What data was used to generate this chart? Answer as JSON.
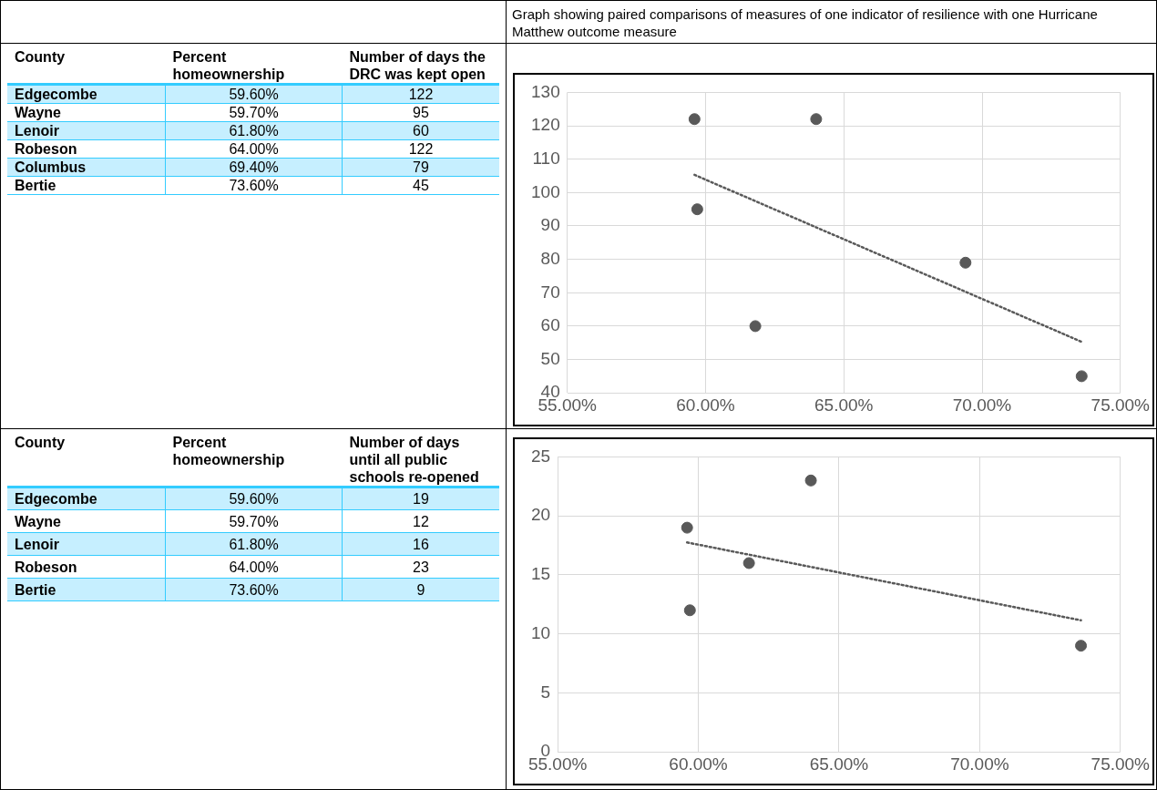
{
  "chart_data": [
    {
      "type": "other",
      "annotations": [
        "County",
        "Percent homeownership",
        "Number of days the DRC was kept open",
        "Edgecombe",
        "59.60%",
        "122",
        "Wayne",
        "59.70%",
        "95",
        "Lenoir",
        "61.80%",
        "60",
        "Robeson",
        "64.00%",
        "122",
        "Columbus",
        "69.40%",
        "79",
        "Bertie",
        "73.60%",
        "45"
      ]
    },
    {
      "type": "scatter",
      "title": "Graph showing paired comparisons of measures of one indicator of resilience with one Hurricane Matthew outcome measure",
      "series": [
        {
          "color": "#595959",
          "marker": "circle",
          "x": [
            59.6,
            59.7,
            61.8,
            64,
            69.4,
            73.6
          ],
          "values": [
            122,
            95,
            60,
            122,
            79,
            45
          ]
        },
        {
          "type": "line",
          "color": "#595959",
          "marker": "none",
          "x": [
            59.6,
            73.6
          ],
          "values": [
            105.3,
            55.3
          ],
          "line_style": "dotted"
        }
      ],
      "xlim": [
        55,
        75
      ],
      "xticks": [
        {
          "value": 55,
          "label": "55.00%"
        },
        {
          "value": 60,
          "label": "60.00%"
        },
        {
          "value": 65,
          "label": "65.00%"
        },
        {
          "value": 70,
          "label": "70.00%"
        },
        {
          "value": 75,
          "label": "75.00%"
        }
      ],
      "ylim": [
        40,
        130
      ],
      "yticks": [
        40,
        50,
        60,
        70,
        80,
        90,
        100,
        110,
        120,
        130
      ],
      "grid": true
    },
    {
      "type": "other",
      "annotations": [
        "County",
        "Percent homeownership",
        "Number of days until all public schools re-opened",
        "Edgecombe",
        "59.60%",
        "19",
        "Wayne",
        "59.70%",
        "12",
        "Lenoir",
        "61.80%",
        "16",
        "Robeson",
        "64.00%",
        "23",
        "Bertie",
        "73.60%",
        "9"
      ]
    },
    {
      "type": "scatter",
      "series": [
        {
          "color": "#595959",
          "marker": "circle",
          "x": [
            59.6,
            59.7,
            61.8,
            64,
            73.6
          ],
          "values": [
            19,
            12,
            16,
            23,
            9
          ]
        },
        {
          "type": "line",
          "color": "#595959",
          "marker": "none",
          "x": [
            59.6,
            73.6
          ],
          "values": [
            17.75,
            11.15
          ],
          "line_style": "dotted"
        }
      ],
      "xlim": [
        55,
        75
      ],
      "xticks": [
        {
          "value": 55,
          "label": "55.00%"
        },
        {
          "value": 60,
          "label": "60.00%"
        },
        {
          "value": 65,
          "label": "65.00%"
        },
        {
          "value": 70,
          "label": "70.00%"
        },
        {
          "value": 75,
          "label": "75.00%"
        }
      ],
      "ylim": [
        0,
        25
      ],
      "yticks": [
        0,
        5,
        10,
        15,
        20,
        25
      ],
      "grid": true
    }
  ]
}
